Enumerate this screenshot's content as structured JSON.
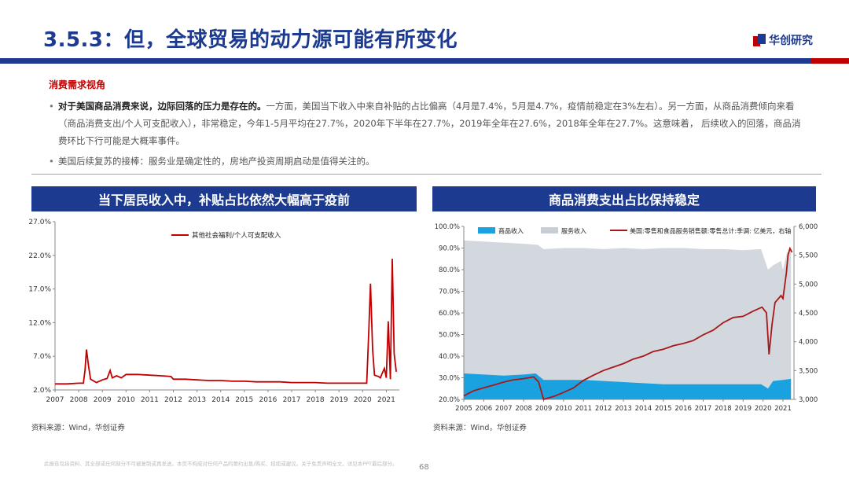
{
  "page": {
    "title": "3.5.3：但，全球贸易的动力源可能有所变化",
    "logo_text": "华创研究",
    "section_label": "消费需求视角",
    "bullets": [
      {
        "strong": "对于美国商品消费来说，边际回落的压力是存在的。",
        "text": "一方面，美国当下收入中来自补贴的占比偏高（4月是7.4%，5月是4.7%，疫情前稳定在3%左右）。另一方面，从商品消费倾向来看（商品消费支出/个人可支配收入），非常稳定，今年1-5月平均在27.7%，2020年下半年在27.7%，2019年全年在27.6%，2018年全年在27.7%。这意味着， 后续收入的回落，商品消费环比下行可能是大概率事件。"
      },
      {
        "strong": "",
        "text": "美国后续复苏的接棒：服务业是确定性的，房地产投资周期启动是值得关注的。"
      }
    ],
    "footer_text": "此报告包括资料、其全部或任何部分不可被复制或再发送。本页不构成对任何产品的要约出售/购买、招揽或建议。关于免责声明全文，详见本PPT最后部分。",
    "page_number": "68"
  },
  "charts": {
    "left": {
      "header": "当下居民收入中，补贴占比依然大幅高于疫前",
      "source": "资料来源：Wind，华创证券"
    },
    "right": {
      "header": "商品消费支出占比保持稳定",
      "source": "资料来源：Wind，华创证券"
    }
  },
  "chart_data": [
    {
      "type": "line",
      "title": "",
      "x_ticks": [
        "2007",
        "2008",
        "2009",
        "2010",
        "2011",
        "2012",
        "2013",
        "2014",
        "2015",
        "2016",
        "2017",
        "2018",
        "2019",
        "2020",
        "2021"
      ],
      "y_ticks": [
        "2.0%",
        "7.0%",
        "12.0%",
        "17.0%",
        "22.0%",
        "27.0%"
      ],
      "ylim": [
        2.0,
        27.0
      ],
      "xlim": [
        2007.0,
        2021.55
      ],
      "series": [
        {
          "name": "其他社会福利/个人可支配收入",
          "color": "#c00000",
          "points": [
            [
              2007.0,
              2.9
            ],
            [
              2007.5,
              2.9
            ],
            [
              2008.0,
              3.0
            ],
            [
              2008.2,
              3.0
            ],
            [
              2008.27,
              5.0
            ],
            [
              2008.33,
              8.0
            ],
            [
              2008.42,
              5.5
            ],
            [
              2008.5,
              3.6
            ],
            [
              2008.75,
              3.1
            ],
            [
              2009.0,
              3.5
            ],
            [
              2009.2,
              3.7
            ],
            [
              2009.33,
              4.9
            ],
            [
              2009.42,
              3.8
            ],
            [
              2009.6,
              4.1
            ],
            [
              2009.8,
              3.8
            ],
            [
              2010.0,
              4.3
            ],
            [
              2010.5,
              4.3
            ],
            [
              2011.0,
              4.2
            ],
            [
              2011.5,
              4.1
            ],
            [
              2011.9,
              4.0
            ],
            [
              2012.0,
              3.6
            ],
            [
              2012.5,
              3.6
            ],
            [
              2013.0,
              3.5
            ],
            [
              2013.5,
              3.4
            ],
            [
              2014.0,
              3.4
            ],
            [
              2014.5,
              3.3
            ],
            [
              2015.0,
              3.3
            ],
            [
              2015.5,
              3.2
            ],
            [
              2016.0,
              3.2
            ],
            [
              2016.5,
              3.2
            ],
            [
              2017.0,
              3.1
            ],
            [
              2017.5,
              3.1
            ],
            [
              2018.0,
              3.1
            ],
            [
              2018.5,
              3.0
            ],
            [
              2019.0,
              3.0
            ],
            [
              2019.5,
              3.0
            ],
            [
              2019.95,
              3.0
            ],
            [
              2020.17,
              3.0
            ],
            [
              2020.25,
              10.0
            ],
            [
              2020.33,
              17.8
            ],
            [
              2020.42,
              8.0
            ],
            [
              2020.5,
              4.2
            ],
            [
              2020.67,
              4.0
            ],
            [
              2020.75,
              3.8
            ],
            [
              2020.83,
              4.5
            ],
            [
              2020.92,
              5.2
            ],
            [
              2021.0,
              3.8
            ],
            [
              2021.08,
              12.2
            ],
            [
              2021.17,
              3.6
            ],
            [
              2021.25,
              21.5
            ],
            [
              2021.33,
              7.4
            ],
            [
              2021.42,
              4.7
            ]
          ]
        }
      ]
    },
    {
      "type": "area",
      "title": "",
      "x_ticks": [
        "2005",
        "2006",
        "2007",
        "2008",
        "2009",
        "2010",
        "2011",
        "2012",
        "2013",
        "2014",
        "2015",
        "2016",
        "2017",
        "2018",
        "2019",
        "2020",
        "2021"
      ],
      "y_left_ticks": [
        "20.0%",
        "30.0%",
        "40.0%",
        "50.0%",
        "60.0%",
        "70.0%",
        "80.0%",
        "90.0%",
        "100.0%"
      ],
      "y_right_ticks": [
        "3,000",
        "3,500",
        "4,000",
        "4,500",
        "5,000",
        "5,500",
        "6,000"
      ],
      "ylim_left": [
        20,
        100
      ],
      "ylim_right": [
        3000,
        6000
      ],
      "xlim": [
        2005.0,
        2021.55
      ],
      "legend": [
        "商品收入",
        "服务收入",
        "美国:零售和食品服务销售额:零售总计:季调: 亿美元，右轴"
      ],
      "series": [
        {
          "name": "商品收入",
          "color": "#1aa1df",
          "axis": "left",
          "points": [
            [
              2005.0,
              32.0
            ],
            [
              2006.0,
              31.5
            ],
            [
              2007.0,
              31.0
            ],
            [
              2008.0,
              31.5
            ],
            [
              2008.6,
              32.0
            ],
            [
              2009.0,
              29.0
            ],
            [
              2010.0,
              29.0
            ],
            [
              2011.0,
              29.0
            ],
            [
              2012.0,
              28.5
            ],
            [
              2013.0,
              28.0
            ],
            [
              2014.0,
              27.5
            ],
            [
              2015.0,
              27.0
            ],
            [
              2016.0,
              27.0
            ],
            [
              2017.0,
              27.0
            ],
            [
              2018.0,
              27.0
            ],
            [
              2019.0,
              27.0
            ],
            [
              2019.9,
              27.0
            ],
            [
              2020.25,
              25.0
            ],
            [
              2020.5,
              28.5
            ],
            [
              2021.0,
              29.0
            ],
            [
              2021.4,
              29.5
            ]
          ]
        },
        {
          "name": "服务收入",
          "color": "#d3d7de",
          "axis": "left",
          "points": [
            [
              2005.0,
              93.5
            ],
            [
              2006.0,
              93.0
            ],
            [
              2007.0,
              92.5
            ],
            [
              2008.0,
              92.0
            ],
            [
              2008.7,
              91.5
            ],
            [
              2009.0,
              89.5
            ],
            [
              2010.0,
              90.0
            ],
            [
              2011.0,
              90.0
            ],
            [
              2012.0,
              89.5
            ],
            [
              2013.0,
              90.0
            ],
            [
              2014.0,
              89.5
            ],
            [
              2015.0,
              90.0
            ],
            [
              2016.0,
              90.0
            ],
            [
              2017.0,
              89.5
            ],
            [
              2018.0,
              89.5
            ],
            [
              2019.0,
              89.0
            ],
            [
              2019.9,
              89.5
            ],
            [
              2020.25,
              80.0
            ],
            [
              2020.5,
              82.0
            ],
            [
              2020.9,
              84.0
            ],
            [
              2021.0,
              80.0
            ],
            [
              2021.2,
              88.0
            ],
            [
              2021.4,
              89.0
            ]
          ]
        },
        {
          "name": "美国:零售和食品服务销售额:零售总计:季调: 亿美元，右轴",
          "color": "#a81818",
          "axis": "right",
          "points": [
            [
              2005.0,
              3060
            ],
            [
              2005.5,
              3150
            ],
            [
              2006.0,
              3200
            ],
            [
              2006.5,
              3250
            ],
            [
              2007.0,
              3300
            ],
            [
              2007.5,
              3340
            ],
            [
              2008.0,
              3360
            ],
            [
              2008.5,
              3390
            ],
            [
              2008.75,
              3300
            ],
            [
              2009.0,
              3000
            ],
            [
              2009.5,
              3050
            ],
            [
              2010.0,
              3120
            ],
            [
              2010.5,
              3200
            ],
            [
              2011.0,
              3330
            ],
            [
              2011.5,
              3420
            ],
            [
              2012.0,
              3500
            ],
            [
              2012.5,
              3560
            ],
            [
              2013.0,
              3620
            ],
            [
              2013.5,
              3700
            ],
            [
              2014.0,
              3750
            ],
            [
              2014.5,
              3830
            ],
            [
              2015.0,
              3870
            ],
            [
              2015.5,
              3930
            ],
            [
              2016.0,
              3970
            ],
            [
              2016.5,
              4020
            ],
            [
              2017.0,
              4120
            ],
            [
              2017.5,
              4200
            ],
            [
              2018.0,
              4330
            ],
            [
              2018.5,
              4420
            ],
            [
              2019.0,
              4440
            ],
            [
              2019.5,
              4530
            ],
            [
              2019.95,
              4600
            ],
            [
              2020.17,
              4500
            ],
            [
              2020.3,
              3780
            ],
            [
              2020.45,
              4300
            ],
            [
              2020.6,
              4680
            ],
            [
              2020.9,
              4800
            ],
            [
              2021.0,
              4750
            ],
            [
              2021.17,
              5200
            ],
            [
              2021.25,
              5500
            ],
            [
              2021.35,
              5620
            ],
            [
              2021.45,
              5550
            ]
          ]
        }
      ]
    }
  ]
}
